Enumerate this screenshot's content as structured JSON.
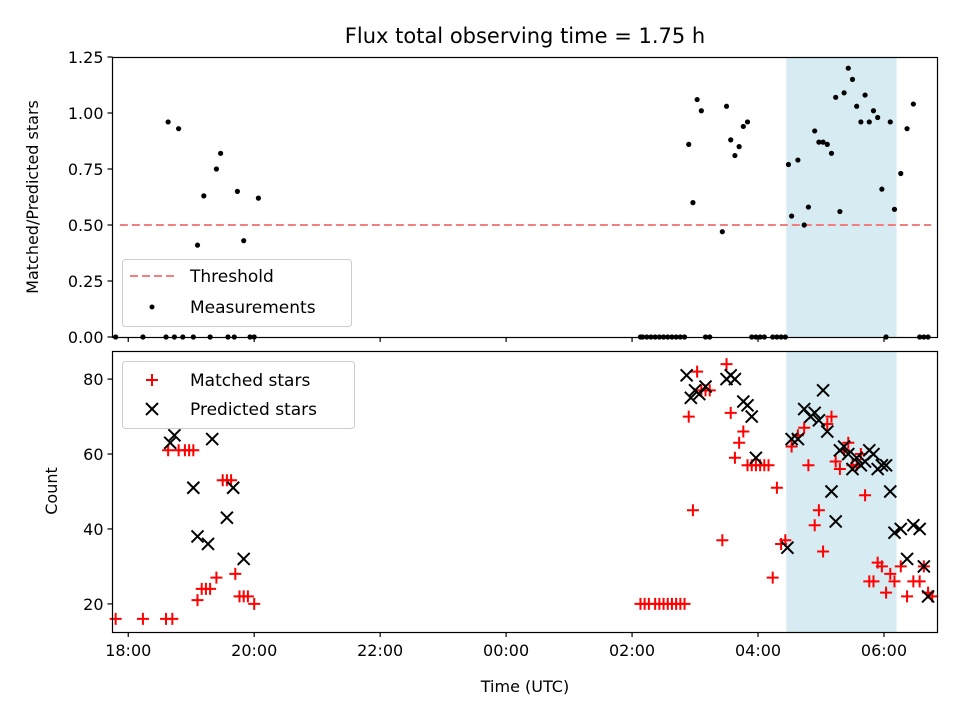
{
  "title": "Flux total observing time = 1.75 h",
  "xlabel": "Time (UTC)",
  "x_ticks": [
    "18:00",
    "20:00",
    "22:00",
    "00:00",
    "02:00",
    "04:00",
    "06:00"
  ],
  "colors": {
    "threshold": "#f08080",
    "measurement": "#000000",
    "matched": "#ff0000",
    "predicted": "#000000",
    "highlight": "#add8e6"
  },
  "highlight_span": [
    "04:27",
    "06:12"
  ],
  "chart_data": [
    {
      "type": "scatter",
      "ylabel": "Matched/Predicted stars",
      "ylim": [
        0,
        1.25
      ],
      "y_ticks": [
        "0.00",
        "0.25",
        "0.50",
        "0.75",
        "1.00",
        "1.25"
      ],
      "legend": {
        "placement": "lower-left",
        "entries": [
          "Threshold",
          "Measurements"
        ]
      },
      "threshold": {
        "name": "Threshold",
        "y": 0.5,
        "x_range": [
          "17:52",
          "06:45"
        ]
      },
      "series": [
        {
          "name": "Measurements",
          "x": [
            "17:48",
            "18:14",
            "18:36",
            "18:38",
            "18:44",
            "18:48",
            "18:52",
            "19:02",
            "19:06",
            "19:12",
            "19:18",
            "19:24",
            "19:28",
            "19:35",
            "19:41",
            "19:44",
            "19:50",
            "19:56",
            "20:00",
            "20:04",
            "02:08",
            "02:10",
            "02:14",
            "02:18",
            "02:22",
            "02:26",
            "02:30",
            "02:34",
            "02:38",
            "02:42",
            "02:46",
            "02:50",
            "02:54",
            "02:58",
            "03:02",
            "03:06",
            "03:10",
            "03:14",
            "03:26",
            "03:30",
            "03:34",
            "03:38",
            "03:42",
            "03:46",
            "03:50",
            "03:54",
            "03:58",
            "04:02",
            "04:06",
            "04:14",
            "04:18",
            "04:22",
            "04:26",
            "04:29",
            "04:32",
            "04:38",
            "04:44",
            "04:48",
            "04:54",
            "04:58",
            "05:02",
            "05:06",
            "05:10",
            "05:14",
            "05:18",
            "05:22",
            "05:26",
            "05:30",
            "05:34",
            "05:38",
            "05:42",
            "05:46",
            "05:50",
            "05:54",
            "05:58",
            "06:02",
            "06:06",
            "06:10",
            "06:16",
            "06:22",
            "06:28",
            "06:34",
            "06:38",
            "06:42"
          ],
          "y": [
            0,
            0,
            0,
            0.96,
            0,
            0.93,
            0,
            0,
            0.41,
            0.63,
            0,
            0.75,
            0.82,
            0,
            0,
            0.65,
            0.43,
            0,
            0,
            0.62,
            0,
            0,
            0,
            0,
            0,
            0,
            0,
            0,
            0,
            0,
            0,
            0,
            0.86,
            0.6,
            1.06,
            1.01,
            0,
            0,
            0.47,
            1.03,
            0.88,
            0.81,
            0.85,
            0.94,
            0.96,
            0,
            0,
            0,
            0,
            0,
            0,
            0,
            0,
            0.77,
            0.54,
            0.79,
            0.5,
            0.58,
            0.92,
            0.87,
            0.87,
            0.86,
            0.82,
            1.07,
            0.56,
            1.09,
            1.2,
            1.15,
            1.03,
            0.96,
            1.08,
            0.96,
            1.01,
            0.98,
            0.66,
            0,
            0.96,
            0.57,
            0.73,
            0.93,
            1.04,
            0,
            0,
            0
          ]
        }
      ]
    },
    {
      "type": "scatter",
      "ylabel": "Count",
      "ylim": [
        12.5,
        87.5
      ],
      "y_ticks": [
        "20",
        "40",
        "60",
        "80"
      ],
      "legend": {
        "placement": "upper-left",
        "entries": [
          "Matched stars",
          "Predicted stars"
        ]
      },
      "series": [
        {
          "name": "Matched stars",
          "marker": "plus",
          "x": [
            "17:48",
            "18:14",
            "18:36",
            "18:38",
            "18:42",
            "18:48",
            "18:54",
            "18:58",
            "19:02",
            "19:06",
            "19:10",
            "19:14",
            "19:18",
            "19:24",
            "19:30",
            "19:34",
            "19:38",
            "19:42",
            "19:46",
            "19:50",
            "19:54",
            "20:00",
            "02:08",
            "02:12",
            "02:16",
            "02:22",
            "02:26",
            "02:30",
            "02:34",
            "02:38",
            "02:42",
            "02:46",
            "02:50",
            "02:54",
            "02:58",
            "03:02",
            "03:06",
            "03:10",
            "03:14",
            "03:26",
            "03:30",
            "03:34",
            "03:38",
            "03:42",
            "03:46",
            "03:50",
            "03:54",
            "03:58",
            "04:02",
            "04:06",
            "04:10",
            "04:14",
            "04:18",
            "04:22",
            "04:26",
            "04:32",
            "04:38",
            "04:44",
            "04:48",
            "04:54",
            "04:58",
            "05:02",
            "05:06",
            "05:10",
            "05:14",
            "05:18",
            "05:22",
            "05:26",
            "05:30",
            "05:34",
            "05:38",
            "05:42",
            "05:46",
            "05:50",
            "05:54",
            "05:58",
            "06:02",
            "06:06",
            "06:10",
            "06:16",
            "06:22",
            "06:28",
            "06:34",
            "06:38",
            "06:42",
            "06:46"
          ],
          "y": [
            16,
            16,
            16,
            61,
            16,
            61,
            61,
            61,
            61,
            21,
            24,
            24,
            24,
            27,
            53,
            53,
            53,
            28,
            22,
            22,
            22,
            20,
            20,
            20,
            20,
            20,
            20,
            20,
            20,
            20,
            20,
            20,
            20,
            70,
            45,
            82,
            77,
            77,
            77,
            37,
            84,
            71,
            59,
            63,
            66,
            57,
            57,
            57,
            57,
            57,
            57,
            27,
            51,
            36,
            37,
            62,
            65,
            67,
            57,
            41,
            45,
            34,
            68,
            70,
            58,
            56,
            61,
            63,
            57,
            57,
            60,
            49,
            26,
            26,
            31,
            30,
            23,
            28,
            26,
            30,
            22,
            26,
            26,
            30,
            23,
            22
          ]
        },
        {
          "name": "Predicted stars",
          "marker": "x",
          "x": [
            "18:40",
            "18:44",
            "19:02",
            "19:06",
            "19:16",
            "19:20",
            "19:34",
            "19:40",
            "19:50",
            "02:52",
            "02:56",
            "03:00",
            "03:04",
            "03:10",
            "03:30",
            "03:34",
            "03:38",
            "03:46",
            "03:50",
            "03:54",
            "03:58",
            "04:28",
            "04:32",
            "04:38",
            "04:44",
            "04:50",
            "04:54",
            "04:58",
            "05:02",
            "05:06",
            "05:10",
            "05:14",
            "05:18",
            "05:22",
            "05:26",
            "05:30",
            "05:34",
            "05:38",
            "05:42",
            "05:46",
            "05:50",
            "05:54",
            "05:58",
            "06:02",
            "06:06",
            "06:10",
            "06:16",
            "06:22",
            "06:28",
            "06:34",
            "06:38",
            "06:42"
          ],
          "y": [
            63,
            65,
            51,
            38,
            36,
            64,
            43,
            51,
            32,
            81,
            75,
            77,
            76,
            78,
            80,
            81,
            80,
            74,
            73,
            70,
            59,
            35,
            64,
            64,
            72,
            70,
            71,
            69,
            77,
            66,
            50,
            42,
            61,
            62,
            60,
            56,
            59,
            57,
            58,
            61,
            60,
            56,
            57,
            57,
            50,
            39,
            40,
            32,
            41,
            40,
            30,
            22
          ]
        }
      ]
    }
  ]
}
